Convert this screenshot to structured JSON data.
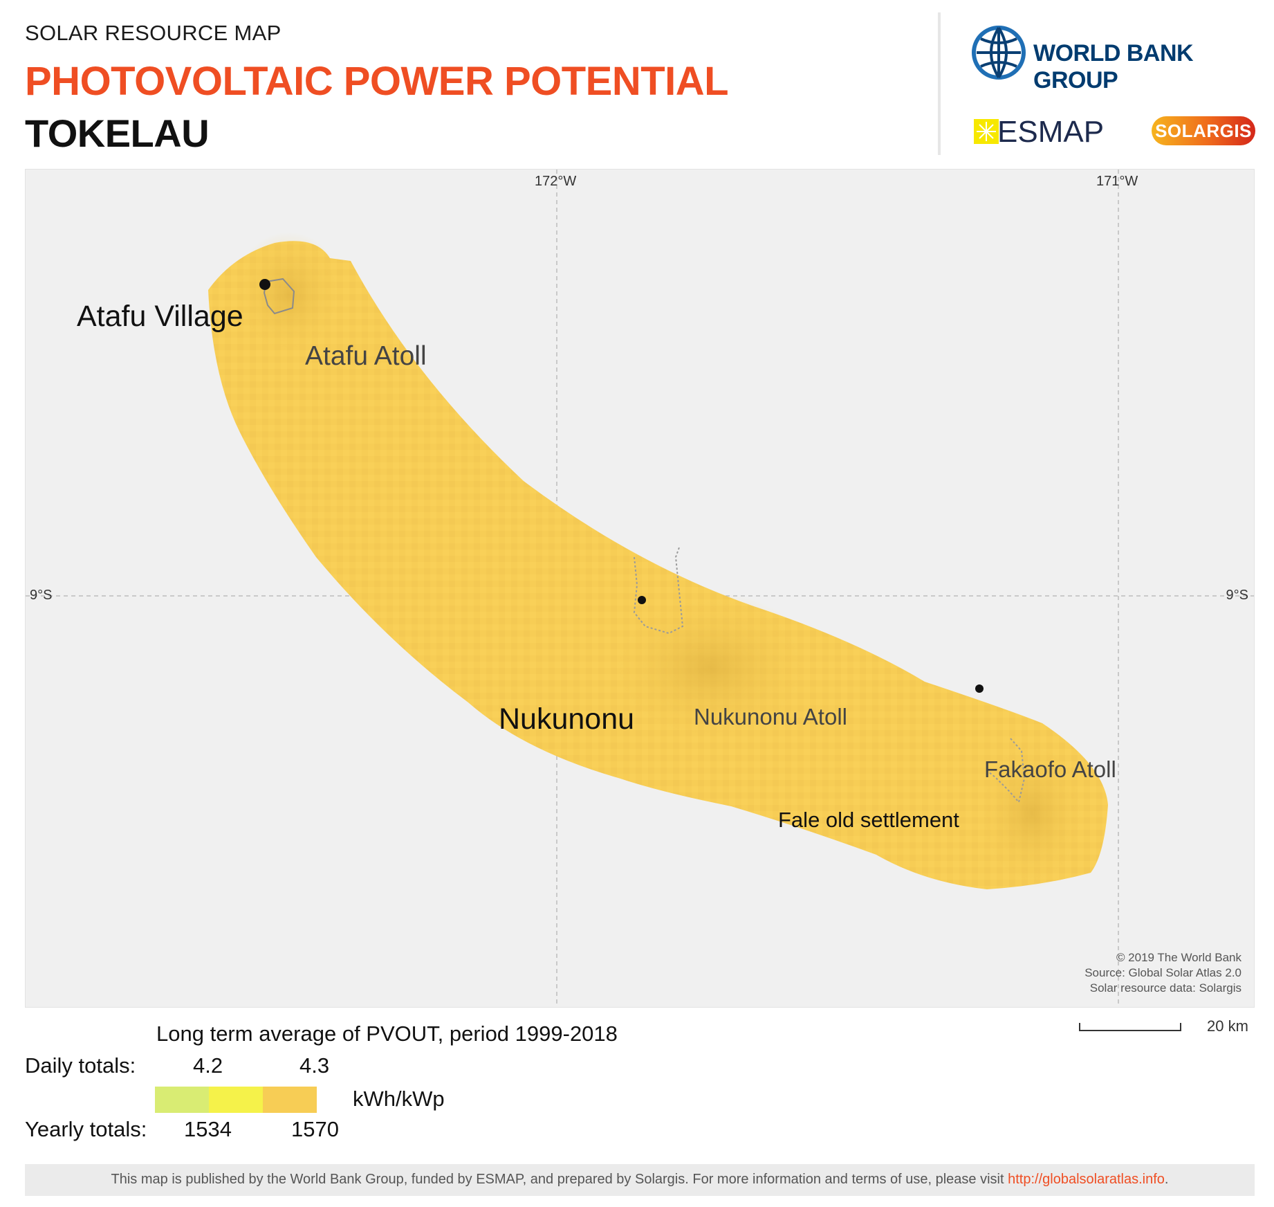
{
  "header": {
    "kicker": "SOLAR RESOURCE MAP",
    "title": "PHOTOVOLTAIC POWER POTENTIAL",
    "country": "TOKELAU"
  },
  "logos": {
    "world_bank": "WORLD BANK GROUP",
    "esmap": "ESMAP",
    "solargis": "SOLARGIS"
  },
  "map": {
    "grid": {
      "lon_172": "172°W",
      "lon_171": "171°W",
      "lat_9_left": "9°S",
      "lat_9_right": "9°S"
    },
    "places": {
      "atafu_village": "Atafu Village",
      "atafu_atoll": "Atafu Atoll",
      "nukunonu": "Nukunonu",
      "nukunonu_atoll": "Nukunonu Atoll",
      "fakaofo_atoll": "Fakaofo Atoll",
      "fale": "Fale old settlement"
    },
    "credits": {
      "line1": "© 2019 The World Bank",
      "line2": "Source: Global Solar Atlas 2.0",
      "line3": "Solar resource data: Solargis"
    },
    "scale_label": "20 km",
    "region_fill": "#f7cd55"
  },
  "legend": {
    "title": "Long term average of PVOUT, period 1999-2018",
    "daily_label": "Daily totals:",
    "daily_min": "4.2",
    "daily_max": "4.3",
    "unit": "kWh/kWp",
    "yearly_label": "Yearly totals:",
    "yearly_min": "1534",
    "yearly_max": "1570",
    "colors": [
      "#d9ec73",
      "#f5f24a",
      "#f7cd55"
    ]
  },
  "footer": {
    "text": "This map is published by the World Bank Group, funded by ESMAP, and prepared by Solargis. For more information and terms of use, please visit ",
    "link": "http://globalsolaratlas.info",
    "end": "."
  }
}
